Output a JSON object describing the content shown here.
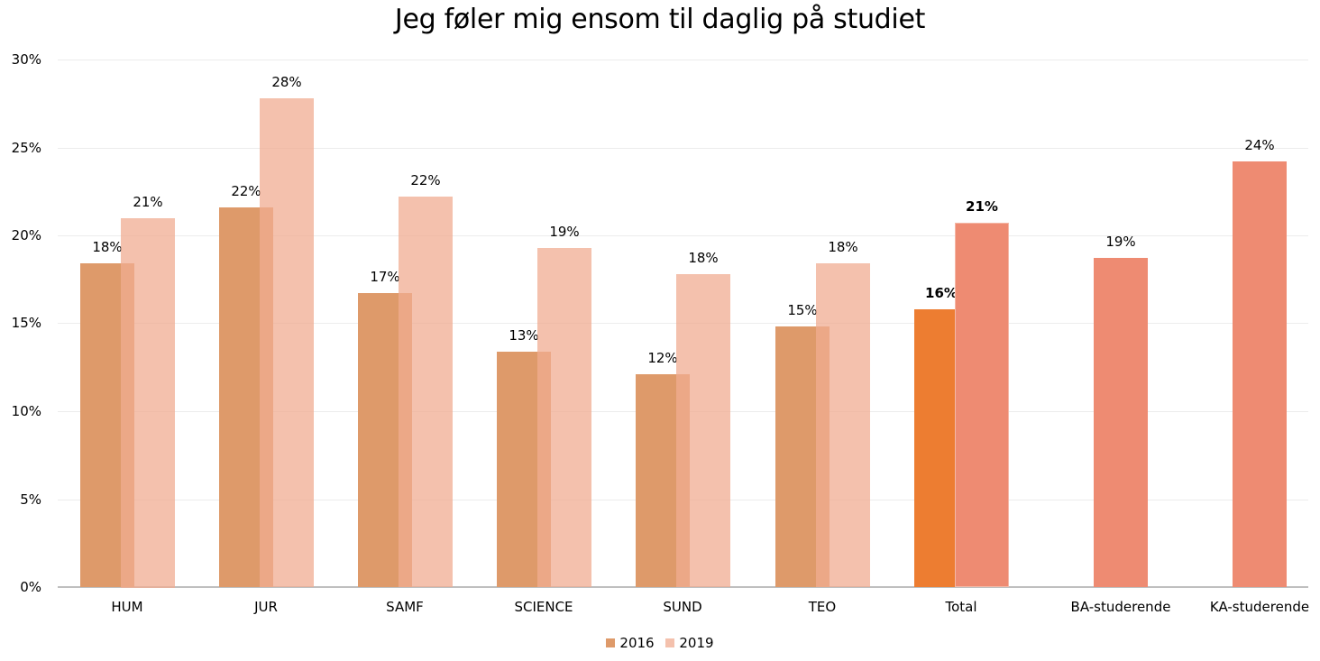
{
  "chart_data": {
    "type": "bar",
    "title": "Jeg føler mig ensom til daglig på studiet",
    "xlabel": "",
    "ylabel": "",
    "ylim": [
      0,
      0.3
    ],
    "yticks": [
      "0%",
      "5%",
      "10%",
      "15%",
      "20%",
      "25%",
      "30%"
    ],
    "grid": true,
    "legend_position": "bottom",
    "categories": [
      "HUM",
      "JUR",
      "SAMF",
      "SCIENCE",
      "SUND",
      "TEO",
      "Total",
      "BA-studerende",
      "KA-studerende"
    ],
    "series": [
      {
        "name": "2016",
        "color": "#DE9A6A",
        "values": [
          0.184,
          0.216,
          0.167,
          0.134,
          0.121,
          0.148,
          0.158,
          null,
          null
        ],
        "labels": [
          "18%",
          "22%",
          "17%",
          "13%",
          "12%",
          "15%",
          "16%",
          "",
          ""
        ]
      },
      {
        "name": "2019",
        "color": "#F4C1AD",
        "values": [
          0.21,
          0.278,
          0.222,
          0.193,
          0.178,
          0.184,
          0.207,
          0.187,
          0.242
        ],
        "labels": [
          "21%",
          "28%",
          "22%",
          "19%",
          "18%",
          "18%",
          "21%",
          "19%",
          "24%"
        ]
      }
    ],
    "highlight": {
      "Total_2016_color": "#ED7D31",
      "Total_2019_color": "#EE8B72",
      "BA_KA_color": "#EE8B72",
      "bold_labels_category": "Total"
    }
  }
}
